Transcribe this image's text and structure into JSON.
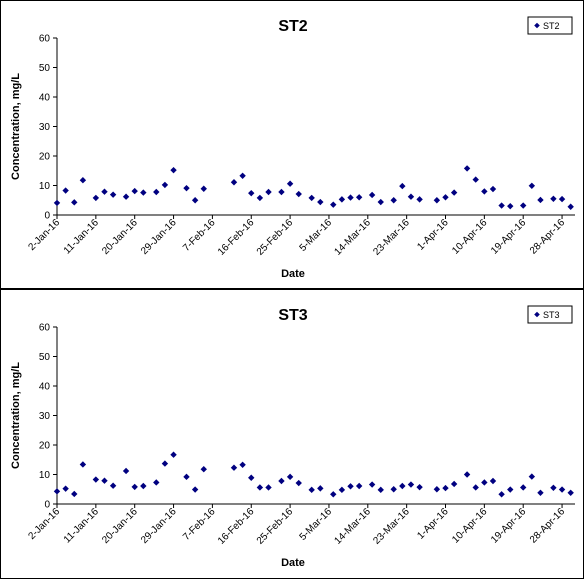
{
  "chart_data": [
    {
      "type": "scatter",
      "title": "ST2",
      "xlabel": "Date",
      "ylabel": "Concentration, mg/L",
      "ylim": [
        0,
        60
      ],
      "yticks": [
        "0",
        "10",
        "20",
        "30",
        "40",
        "50",
        "60"
      ],
      "xlim": [
        "2016-01-02",
        "2016-05-01"
      ],
      "xticks": [
        "2-Jan-16",
        "11-Jan-16",
        "20-Jan-16",
        "29-Jan-16",
        "7-Feb-16",
        "16-Feb-16",
        "25-Feb-16",
        "5-Mar-16",
        "14-Mar-16",
        "23-Mar-16",
        "1-Apr-16",
        "10-Apr-16",
        "19-Apr-16",
        "28-Apr-16"
      ],
      "legend": "top-right",
      "marker_color": "#000080",
      "series": [
        {
          "name": "ST2",
          "points": [
            [
              "2016-01-02",
              4.1
            ],
            [
              "2016-01-04",
              8.3
            ],
            [
              "2016-01-06",
              4.3
            ],
            [
              "2016-01-08",
              11.8
            ],
            [
              "2016-01-11",
              5.8
            ],
            [
              "2016-01-13",
              7.9
            ],
            [
              "2016-01-15",
              6.9
            ],
            [
              "2016-01-18",
              6.2
            ],
            [
              "2016-01-20",
              8.1
            ],
            [
              "2016-01-22",
              7.6
            ],
            [
              "2016-01-25",
              7.8
            ],
            [
              "2016-01-27",
              10.2
            ],
            [
              "2016-01-29",
              15.2
            ],
            [
              "2016-02-01",
              9.1
            ],
            [
              "2016-02-03",
              5.0
            ],
            [
              "2016-02-05",
              8.9
            ],
            [
              "2016-02-12",
              11.1
            ],
            [
              "2016-02-14",
              13.3
            ],
            [
              "2016-02-16",
              7.4
            ],
            [
              "2016-02-18",
              5.8
            ],
            [
              "2016-02-20",
              7.8
            ],
            [
              "2016-02-23",
              7.8
            ],
            [
              "2016-02-25",
              10.6
            ],
            [
              "2016-02-27",
              7.1
            ],
            [
              "2016-03-01",
              5.8
            ],
            [
              "2016-03-03",
              4.4
            ],
            [
              "2016-03-06",
              3.5
            ],
            [
              "2016-03-08",
              5.3
            ],
            [
              "2016-03-10",
              5.9
            ],
            [
              "2016-03-12",
              6.0
            ],
            [
              "2016-03-15",
              6.8
            ],
            [
              "2016-03-17",
              4.4
            ],
            [
              "2016-03-20",
              5.0
            ],
            [
              "2016-03-22",
              9.8
            ],
            [
              "2016-03-24",
              6.2
            ],
            [
              "2016-03-26",
              5.3
            ],
            [
              "2016-03-30",
              5.0
            ],
            [
              "2016-04-01",
              6.0
            ],
            [
              "2016-04-03",
              7.6
            ],
            [
              "2016-04-06",
              15.8
            ],
            [
              "2016-04-08",
              12.0
            ],
            [
              "2016-04-10",
              8.0
            ],
            [
              "2016-04-12",
              8.8
            ],
            [
              "2016-04-14",
              3.2
            ],
            [
              "2016-04-16",
              3.0
            ],
            [
              "2016-04-19",
              3.2
            ],
            [
              "2016-04-21",
              9.9
            ],
            [
              "2016-04-23",
              5.1
            ],
            [
              "2016-04-26",
              5.5
            ],
            [
              "2016-04-28",
              5.4
            ],
            [
              "2016-04-30",
              2.8
            ]
          ]
        }
      ]
    },
    {
      "type": "scatter",
      "title": "ST3",
      "xlabel": "Date",
      "ylabel": "Concentration, mg/L",
      "ylim": [
        0,
        60
      ],
      "yticks": [
        "0",
        "10",
        "20",
        "30",
        "40",
        "50",
        "60"
      ],
      "xlim": [
        "2016-01-02",
        "2016-05-01"
      ],
      "xticks": [
        "2-Jan-16",
        "11-Jan-16",
        "20-Jan-16",
        "29-Jan-16",
        "7-Feb-16",
        "16-Feb-16",
        "25-Feb-16",
        "5-Mar-16",
        "14-Mar-16",
        "23-Mar-16",
        "1-Apr-16",
        "10-Apr-16",
        "19-Apr-16",
        "28-Apr-16"
      ],
      "legend": "top-right",
      "marker_color": "#000080",
      "series": [
        {
          "name": "ST3",
          "points": [
            [
              "2016-01-02",
              4.3
            ],
            [
              "2016-01-04",
              5.2
            ],
            [
              "2016-01-06",
              3.4
            ],
            [
              "2016-01-08",
              13.4
            ],
            [
              "2016-01-11",
              8.3
            ],
            [
              "2016-01-13",
              7.9
            ],
            [
              "2016-01-15",
              6.2
            ],
            [
              "2016-01-18",
              11.2
            ],
            [
              "2016-01-20",
              5.8
            ],
            [
              "2016-01-22",
              6.1
            ],
            [
              "2016-01-25",
              7.3
            ],
            [
              "2016-01-27",
              13.7
            ],
            [
              "2016-01-29",
              16.7
            ],
            [
              "2016-02-01",
              9.2
            ],
            [
              "2016-02-03",
              4.9
            ],
            [
              "2016-02-05",
              11.8
            ],
            [
              "2016-02-12",
              12.3
            ],
            [
              "2016-02-14",
              13.3
            ],
            [
              "2016-02-16",
              8.9
            ],
            [
              "2016-02-18",
              5.6
            ],
            [
              "2016-02-20",
              5.6
            ],
            [
              "2016-02-23",
              7.8
            ],
            [
              "2016-02-25",
              9.2
            ],
            [
              "2016-02-27",
              7.1
            ],
            [
              "2016-03-01",
              4.8
            ],
            [
              "2016-03-03",
              5.3
            ],
            [
              "2016-03-06",
              3.3
            ],
            [
              "2016-03-08",
              4.8
            ],
            [
              "2016-03-10",
              6.0
            ],
            [
              "2016-03-12",
              6.1
            ],
            [
              "2016-03-15",
              6.6
            ],
            [
              "2016-03-17",
              4.8
            ],
            [
              "2016-03-20",
              5.0
            ],
            [
              "2016-03-22",
              6.1
            ],
            [
              "2016-03-24",
              6.6
            ],
            [
              "2016-03-26",
              5.7
            ],
            [
              "2016-03-30",
              5.0
            ],
            [
              "2016-04-01",
              5.4
            ],
            [
              "2016-04-03",
              6.8
            ],
            [
              "2016-04-06",
              10.0
            ],
            [
              "2016-04-08",
              5.6
            ],
            [
              "2016-04-10",
              7.3
            ],
            [
              "2016-04-12",
              7.8
            ],
            [
              "2016-04-14",
              3.3
            ],
            [
              "2016-04-16",
              4.9
            ],
            [
              "2016-04-19",
              5.6
            ],
            [
              "2016-04-21",
              9.3
            ],
            [
              "2016-04-23",
              3.8
            ],
            [
              "2016-04-26",
              5.5
            ],
            [
              "2016-04-28",
              4.9
            ],
            [
              "2016-04-30",
              3.8
            ]
          ]
        }
      ]
    }
  ]
}
